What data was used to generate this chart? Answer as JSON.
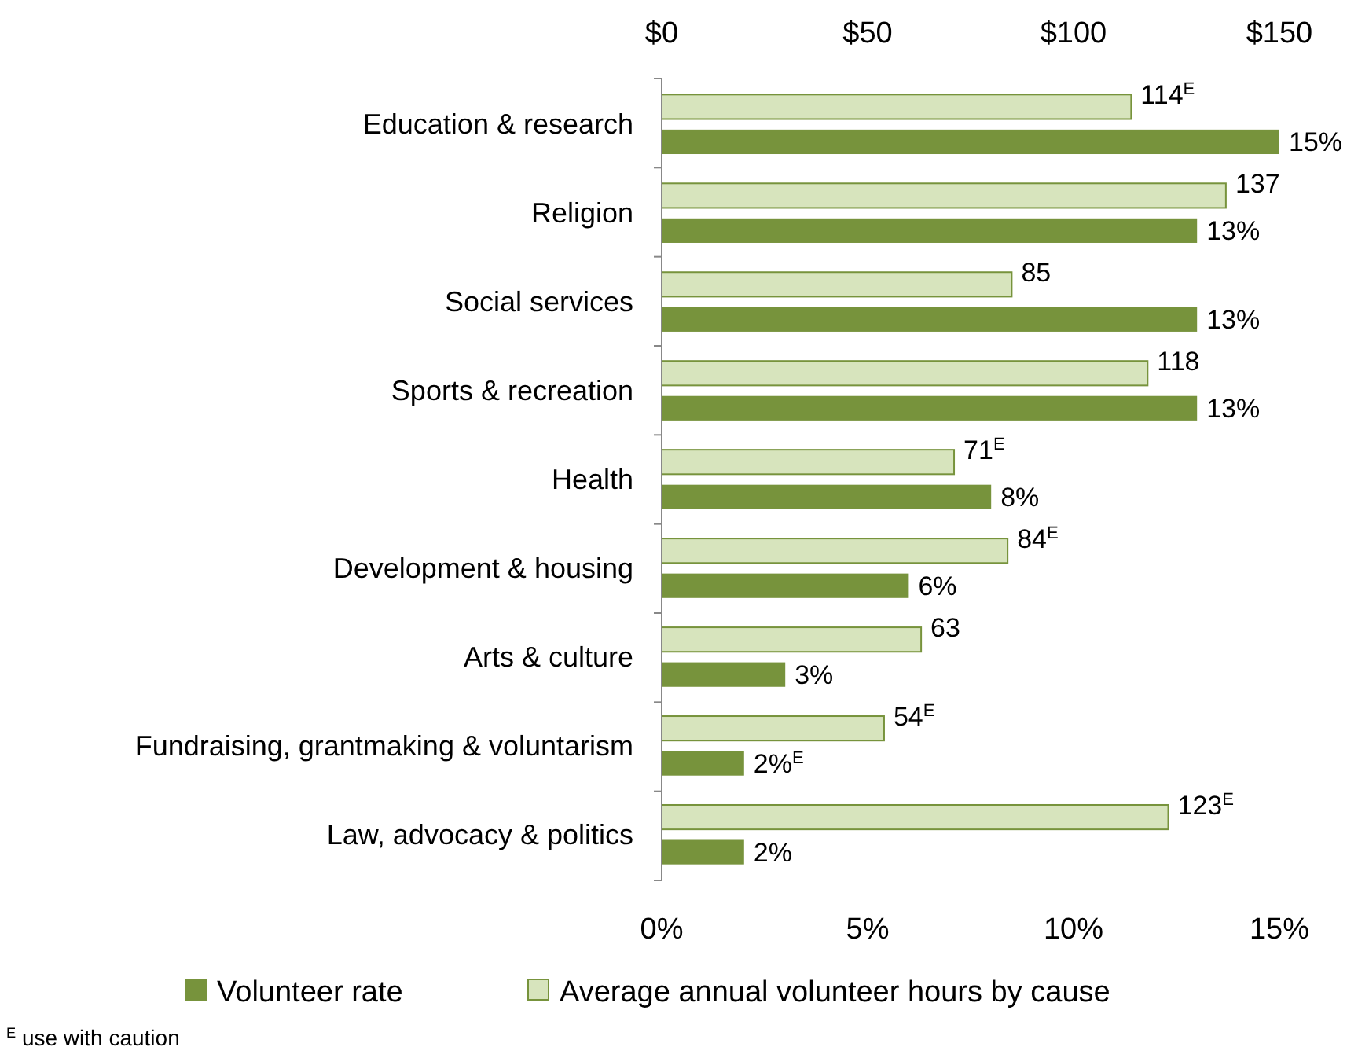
{
  "chart_data": {
    "type": "bar",
    "orientation": "horizontal",
    "categories": [
      "Education & research",
      "Religion",
      "Social services",
      "Sports & recreation",
      "Health",
      "Development & housing",
      "Arts & culture",
      "Fundraising, grantmaking & voluntarism",
      "Law, advocacy & politics"
    ],
    "series": [
      {
        "name": "Average annual volunteer hours by cause",
        "color": "#d7e4bd",
        "axis": "x2",
        "values": [
          114,
          137,
          85,
          118,
          71,
          84,
          63,
          54,
          123
        ],
        "value_labels": [
          "114$^{E}$",
          "137",
          "85",
          "118",
          "71$^{E}$",
          "84$^{E}$",
          "63",
          "54$^{E}$",
          "123$^{E}$"
        ]
      },
      {
        "name": "Volunteer rate",
        "color": "#77933c",
        "values": [
          15,
          13,
          13,
          13,
          8,
          6,
          3,
          2,
          2
        ],
        "value_labels": [
          "15%",
          "13%",
          "13%",
          "13%",
          "8%",
          "6%",
          "3%",
          "2%$^{E}$",
          "2%"
        ]
      }
    ],
    "xlim": [
      0,
      15
    ],
    "xticks": [
      {
        "value": 0,
        "label": "0%"
      },
      {
        "value": 5,
        "label": "5%"
      },
      {
        "value": 10,
        "label": "10%"
      },
      {
        "value": 15,
        "label": "15%"
      }
    ],
    "x2lim": [
      0,
      150
    ],
    "x2ticks": [
      {
        "value": 0,
        "label": "$0"
      },
      {
        "value": 50,
        "label": "$50"
      },
      {
        "value": 100,
        "label": "$100"
      },
      {
        "value": 150,
        "label": "$150"
      }
    ],
    "legend": "bottom",
    "grid": false,
    "annotations": [
      "$^{E}$ use with caution"
    ]
  }
}
